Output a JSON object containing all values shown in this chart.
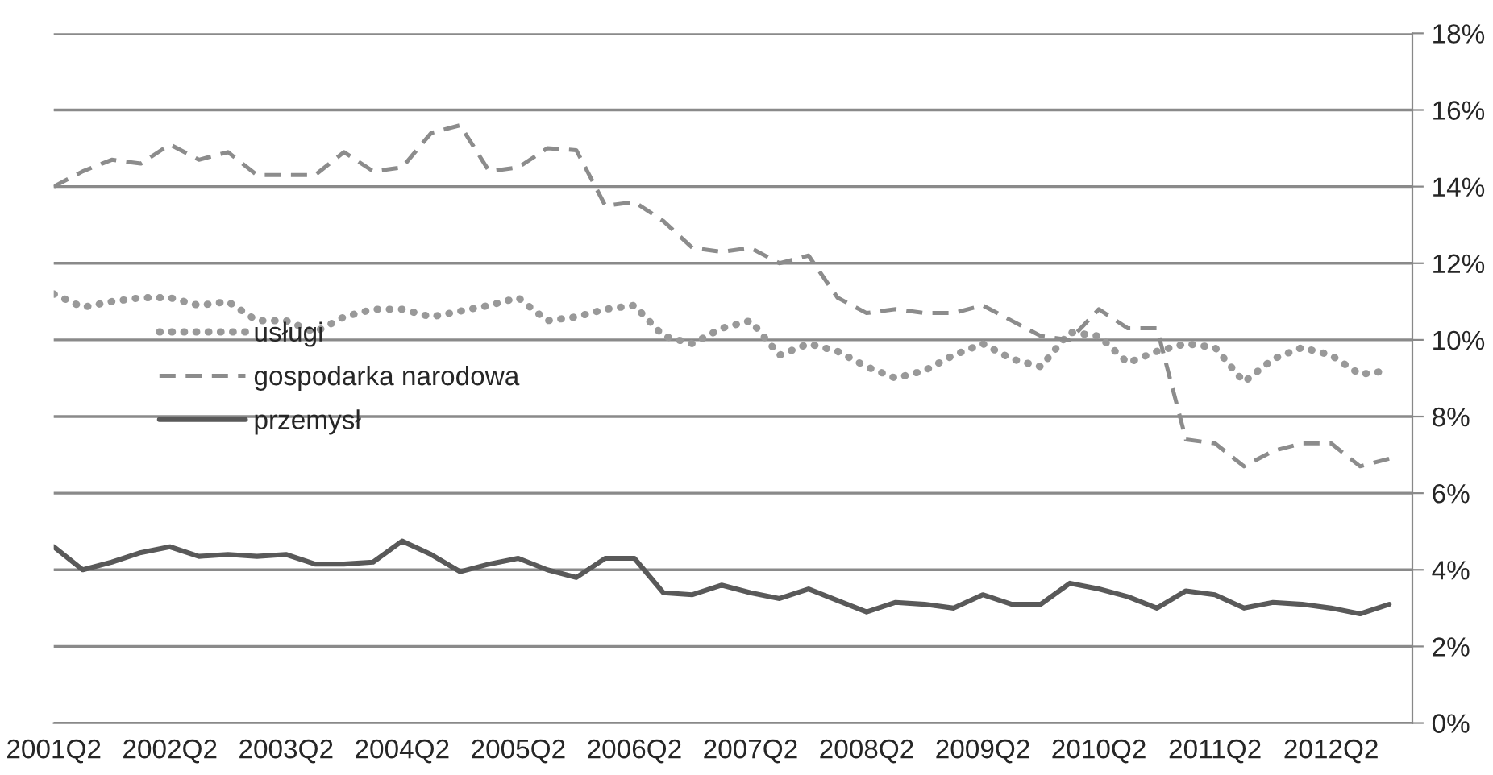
{
  "chart_data": {
    "type": "line",
    "categories": [
      "2001Q2",
      null,
      null,
      null,
      "2002Q2",
      null,
      null,
      null,
      "2003Q2",
      null,
      null,
      null,
      "2004Q2",
      null,
      null,
      null,
      "2005Q2",
      null,
      null,
      null,
      "2006Q2",
      null,
      null,
      null,
      "2007Q2",
      null,
      null,
      null,
      "2008Q2",
      null,
      null,
      null,
      "2009Q2",
      null,
      null,
      null,
      "2010Q2",
      null,
      null,
      null,
      "2011Q2",
      null,
      null,
      null,
      "2012Q2",
      null,
      null
    ],
    "series": [
      {
        "name": "usługi",
        "color": "#999999",
        "line_style": "dotted",
        "values": [
          11.2,
          10.85,
          11.0,
          11.1,
          11.1,
          10.9,
          11.0,
          10.5,
          10.5,
          10.2,
          10.6,
          10.8,
          10.8,
          10.6,
          10.75,
          10.9,
          11.1,
          10.5,
          10.6,
          10.8,
          10.9,
          10.1,
          9.9,
          10.3,
          10.5,
          9.6,
          9.9,
          9.7,
          9.3,
          9.0,
          9.2,
          9.6,
          9.9,
          9.5,
          9.3,
          10.2,
          10.1,
          9.4,
          9.7,
          9.9,
          9.8,
          8.9,
          9.5,
          9.8,
          9.6,
          9.1,
          9.2
        ]
      },
      {
        "name": "gospodarka narodowa",
        "color": "#8c8c8c",
        "line_style": "dashed",
        "values": [
          14.0,
          14.4,
          14.7,
          14.6,
          15.1,
          14.7,
          14.9,
          14.3,
          14.3,
          14.3,
          14.9,
          14.4,
          14.5,
          15.4,
          15.6,
          14.4,
          14.5,
          15.0,
          14.95,
          13.5,
          13.6,
          13.1,
          12.4,
          12.3,
          12.4,
          12.0,
          12.2,
          11.1,
          10.7,
          10.8,
          10.7,
          10.7,
          10.9,
          10.5,
          10.1,
          10.0,
          10.8,
          10.3,
          10.3,
          7.4,
          7.3,
          6.7,
          7.1,
          7.3,
          7.3,
          6.7,
          6.9
        ]
      },
      {
        "name": "przemysł",
        "color": "#595959",
        "line_style": "solid",
        "values": [
          4.6,
          4.0,
          4.2,
          4.45,
          4.6,
          4.35,
          4.4,
          4.35,
          4.4,
          4.15,
          4.15,
          4.2,
          4.75,
          4.4,
          3.95,
          4.15,
          4.3,
          4.0,
          3.8,
          4.3,
          4.3,
          3.4,
          3.35,
          3.6,
          3.4,
          3.25,
          3.5,
          3.2,
          2.9,
          3.15,
          3.1,
          3.0,
          3.35,
          3.1,
          3.1,
          3.65,
          3.5,
          3.3,
          3.0,
          3.45,
          3.35,
          3.0,
          3.15,
          3.1,
          3.0,
          2.85,
          3.1
        ]
      }
    ],
    "ylim": [
      0,
      18
    ],
    "yticks": [
      {
        "value": 0,
        "label": "0%"
      },
      {
        "value": 2,
        "label": "2%"
      },
      {
        "value": 4,
        "label": "4%"
      },
      {
        "value": 6,
        "label": "6%"
      },
      {
        "value": 8,
        "label": "8%"
      },
      {
        "value": 10,
        "label": "10%"
      },
      {
        "value": 12,
        "label": "12%"
      },
      {
        "value": 14,
        "label": "14%"
      },
      {
        "value": 16,
        "label": "16%"
      },
      {
        "value": 18,
        "label": "18%"
      }
    ],
    "grid": "y",
    "legend": "center left"
  }
}
